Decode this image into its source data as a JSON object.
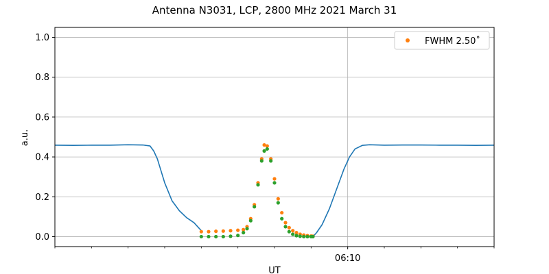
{
  "chart_data": {
    "type": "scatter",
    "title": "Antenna N3031, LCP, 2800 MHz 2021 March 31",
    "xlabel": "UT",
    "ylabel": "a.u.",
    "ylim": [
      -0.05,
      1.05
    ],
    "xlim_minutes_from_0610": [
      -8,
      4
    ],
    "y_ticks": [
      0.0,
      0.2,
      0.4,
      0.6,
      0.8,
      1.0
    ],
    "y_tick_labels": [
      "0.0",
      "0.2",
      "0.4",
      "0.6",
      "0.8",
      "1.0"
    ],
    "x_major_tick": {
      "minutes": 0,
      "label": "06:10"
    },
    "x_minor_ticks_minutes": [
      -8,
      -7,
      -6,
      -5,
      -4,
      -3,
      -2,
      -1,
      1,
      2,
      3,
      4
    ],
    "grid": true,
    "legend": {
      "placement": "top-right",
      "entries": [
        "FWHM 2.50$^\\circ$"
      ],
      "label": "FWHM 2.50˚"
    },
    "series": [
      {
        "name": "",
        "kind": "line",
        "color": "#1f77b4",
        "points": [
          [
            -8.0,
            0.459
          ],
          [
            -7.5,
            0.458
          ],
          [
            -7.0,
            0.459
          ],
          [
            -6.5,
            0.459
          ],
          [
            -6.0,
            0.461
          ],
          [
            -5.6,
            0.46
          ],
          [
            -5.4,
            0.455
          ],
          [
            -5.3,
            0.43
          ],
          [
            -5.2,
            0.39
          ],
          [
            -5.1,
            0.33
          ],
          [
            -5.0,
            0.27
          ],
          [
            -4.8,
            0.18
          ],
          [
            -4.6,
            0.13
          ],
          [
            -4.4,
            0.095
          ],
          [
            -4.2,
            0.07
          ],
          [
            -4.05,
            0.04
          ],
          [
            -4.0,
            0.03
          ]
        ]
      },
      {
        "name": "",
        "kind": "line",
        "color": "#1f77b4",
        "points": [
          [
            -0.95,
            0.0
          ],
          [
            -0.85,
            0.02
          ],
          [
            -0.7,
            0.06
          ],
          [
            -0.5,
            0.14
          ],
          [
            -0.3,
            0.24
          ],
          [
            -0.1,
            0.34
          ],
          [
            0.05,
            0.4
          ],
          [
            0.2,
            0.44
          ],
          [
            0.4,
            0.458
          ],
          [
            0.6,
            0.461
          ],
          [
            1.0,
            0.459
          ],
          [
            1.5,
            0.46
          ],
          [
            2.0,
            0.46
          ],
          [
            2.5,
            0.459
          ],
          [
            3.0,
            0.459
          ],
          [
            3.5,
            0.458
          ],
          [
            4.0,
            0.459
          ]
        ]
      },
      {
        "name": "FWHM 2.50˚",
        "kind": "points",
        "color": "#ff7f0e",
        "points": [
          [
            -4.0,
            0.025
          ],
          [
            -3.8,
            0.025
          ],
          [
            -3.6,
            0.027
          ],
          [
            -3.4,
            0.028
          ],
          [
            -3.2,
            0.03
          ],
          [
            -3.0,
            0.032
          ],
          [
            -2.85,
            0.035
          ],
          [
            -2.75,
            0.05
          ],
          [
            -2.65,
            0.09
          ],
          [
            -2.55,
            0.16
          ],
          [
            -2.45,
            0.27
          ],
          [
            -2.35,
            0.39
          ],
          [
            -2.28,
            0.46
          ],
          [
            -2.2,
            0.455
          ],
          [
            -2.1,
            0.39
          ],
          [
            -2.0,
            0.29
          ],
          [
            -1.9,
            0.19
          ],
          [
            -1.8,
            0.12
          ],
          [
            -1.7,
            0.07
          ],
          [
            -1.6,
            0.045
          ],
          [
            -1.5,
            0.03
          ],
          [
            -1.4,
            0.02
          ],
          [
            -1.3,
            0.012
          ],
          [
            -1.2,
            0.008
          ],
          [
            -1.1,
            0.005
          ],
          [
            -1.0,
            0.003
          ],
          [
            -0.95,
            0.002
          ]
        ]
      },
      {
        "name": "",
        "kind": "points",
        "color": "#2ca02c",
        "points": [
          [
            -4.0,
            0.0
          ],
          [
            -3.8,
            0.0
          ],
          [
            -3.6,
            0.0
          ],
          [
            -3.4,
            0.0
          ],
          [
            -3.2,
            0.002
          ],
          [
            -3.0,
            0.006
          ],
          [
            -2.85,
            0.02
          ],
          [
            -2.75,
            0.04
          ],
          [
            -2.65,
            0.08
          ],
          [
            -2.55,
            0.15
          ],
          [
            -2.45,
            0.26
          ],
          [
            -2.35,
            0.38
          ],
          [
            -2.28,
            0.43
          ],
          [
            -2.2,
            0.44
          ],
          [
            -2.1,
            0.38
          ],
          [
            -2.0,
            0.27
          ],
          [
            -1.9,
            0.17
          ],
          [
            -1.8,
            0.09
          ],
          [
            -1.7,
            0.05
          ],
          [
            -1.6,
            0.025
          ],
          [
            -1.5,
            0.012
          ],
          [
            -1.4,
            0.005
          ],
          [
            -1.3,
            0.002
          ],
          [
            -1.2,
            0.0
          ],
          [
            -1.1,
            0.0
          ],
          [
            -1.0,
            0.0
          ],
          [
            -0.95,
            0.0
          ]
        ]
      }
    ]
  }
}
